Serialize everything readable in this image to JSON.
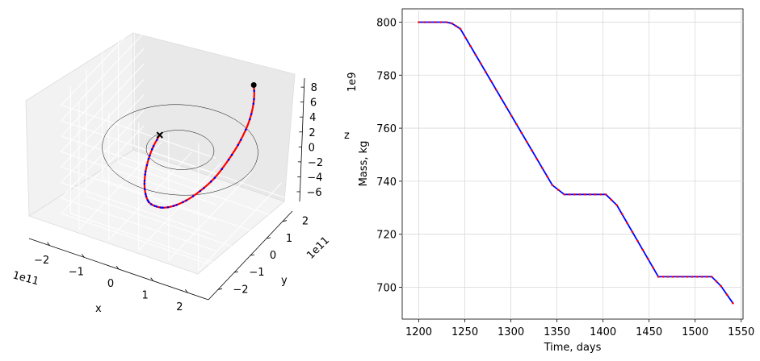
{
  "chart_data": [
    {
      "type": "line3d",
      "xlabel": "x",
      "ylabel": "y",
      "zlabel": "z",
      "x_offset_label": "1e11",
      "y_offset_label": "1e11",
      "z_offset_label": "1e9",
      "x_ticks": [
        "−2",
        "−1",
        "0",
        "1",
        "2"
      ],
      "y_ticks": [
        "−2",
        "−1",
        "0",
        "1",
        "2"
      ],
      "z_ticks": [
        "−6",
        "−4",
        "−2",
        "0",
        "2",
        "4",
        "6",
        "8"
      ],
      "xlim": [
        -2.6,
        2.6
      ],
      "ylim": [
        -2.6,
        2.6
      ],
      "zlim": [
        -7.3,
        9.2
      ],
      "grid": true,
      "orbits": [
        {
          "name": "",
          "radius": 2.3,
          "color": "#000000",
          "linewidth": 0.5
        },
        {
          "name": "",
          "radius": 1.0,
          "color": "#000000",
          "linewidth": 0.5
        }
      ],
      "transfer": {
        "line_color": "#ff0000",
        "marker_color": "#0000ff",
        "t_deg": [
          -47,
          -35,
          -20,
          -5,
          10,
          25,
          40,
          55,
          70,
          85,
          100,
          115,
          130,
          145,
          160,
          175,
          190,
          205
        ],
        "r": [
          2.3,
          2.2,
          2.08,
          1.95,
          1.82,
          1.7,
          1.58,
          1.47,
          1.38,
          1.3,
          1.22,
          1.16,
          1.1,
          1.06,
          1.03,
          1.01,
          1.0,
          1.0
        ],
        "z": [
          6.8,
          6.2,
          5.0,
          3.5,
          1.8,
          0.0,
          -1.5,
          -2.8,
          -3.8,
          -4.5,
          -4.9,
          -5.1,
          -4.8,
          -4.2,
          -3.3,
          -2.3,
          -1.2,
          -0.2
        ]
      },
      "start_marker": "dot",
      "end_marker": "x"
    },
    {
      "type": "line",
      "title": "",
      "xlabel": "Time, days",
      "ylabel": "Mass, kg",
      "xlim": [
        1182,
        1552
      ],
      "ylim": [
        688,
        805
      ],
      "x_ticks": [
        1200,
        1250,
        1300,
        1350,
        1400,
        1450,
        1500,
        1550
      ],
      "y_ticks": [
        700,
        720,
        740,
        760,
        780,
        800
      ],
      "grid": true,
      "line_color": "#0000ff",
      "marker_color": "#ff0000",
      "x": [
        1200,
        1230,
        1236,
        1245,
        1345,
        1358,
        1403,
        1415,
        1460,
        1518,
        1528,
        1541
      ],
      "y": [
        800,
        800,
        799.5,
        797.5,
        738.5,
        735,
        735,
        731,
        704,
        704,
        700.5,
        694
      ]
    }
  ]
}
